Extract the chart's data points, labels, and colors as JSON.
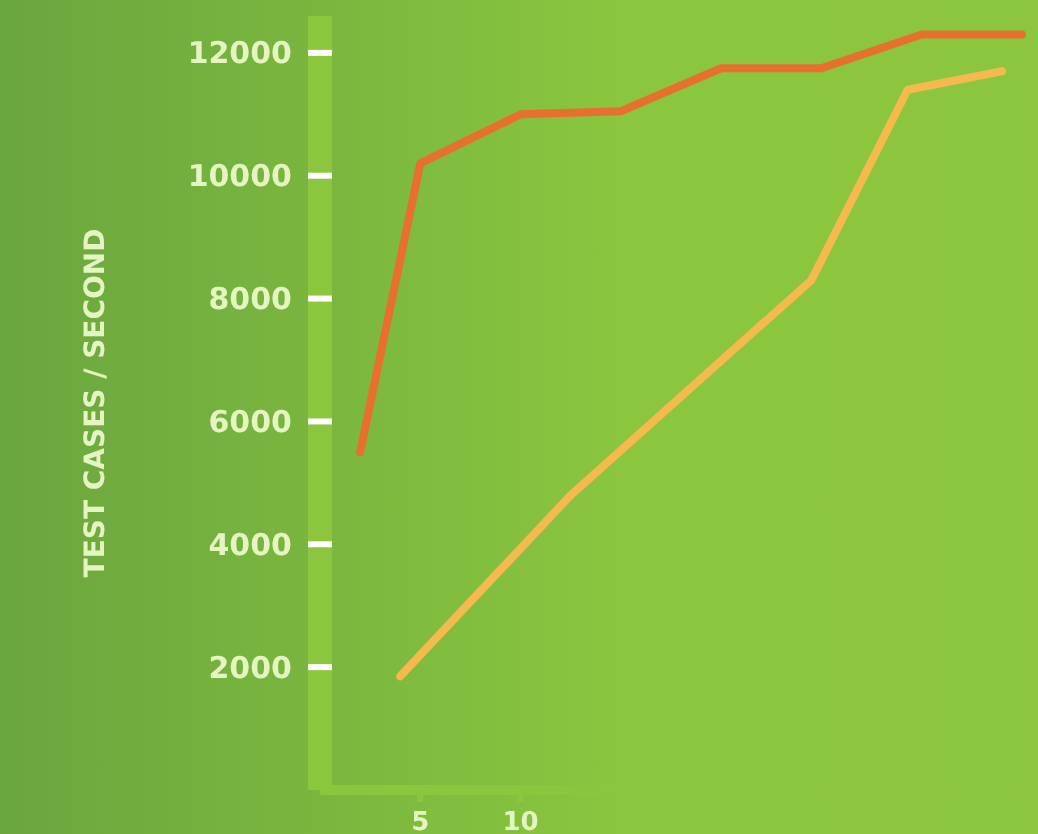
{
  "chart_data": {
    "type": "line",
    "ylabel": "TEST CASES / SECOND",
    "xlim": [
      0,
      35
    ],
    "xticks": [
      5,
      10
    ],
    "ylim": [
      0,
      12600
    ],
    "yticks": [
      2000,
      4000,
      6000,
      8000,
      10000,
      12000
    ],
    "grid": false,
    "marker": "none",
    "line_style": "solid",
    "series": [
      {
        "color": "#e8702f",
        "x": [
          2,
          5,
          10,
          15,
          20,
          25,
          30,
          35
        ],
        "values": [
          5500,
          10200,
          11000,
          11050,
          11750,
          11750,
          12300,
          12300
        ]
      },
      {
        "color": "#f6b94e",
        "x": [
          4,
          12.5,
          24.5,
          29.3,
          34
        ],
        "values": [
          1850,
          4800,
          8300,
          11400,
          11700
        ]
      }
    ]
  }
}
